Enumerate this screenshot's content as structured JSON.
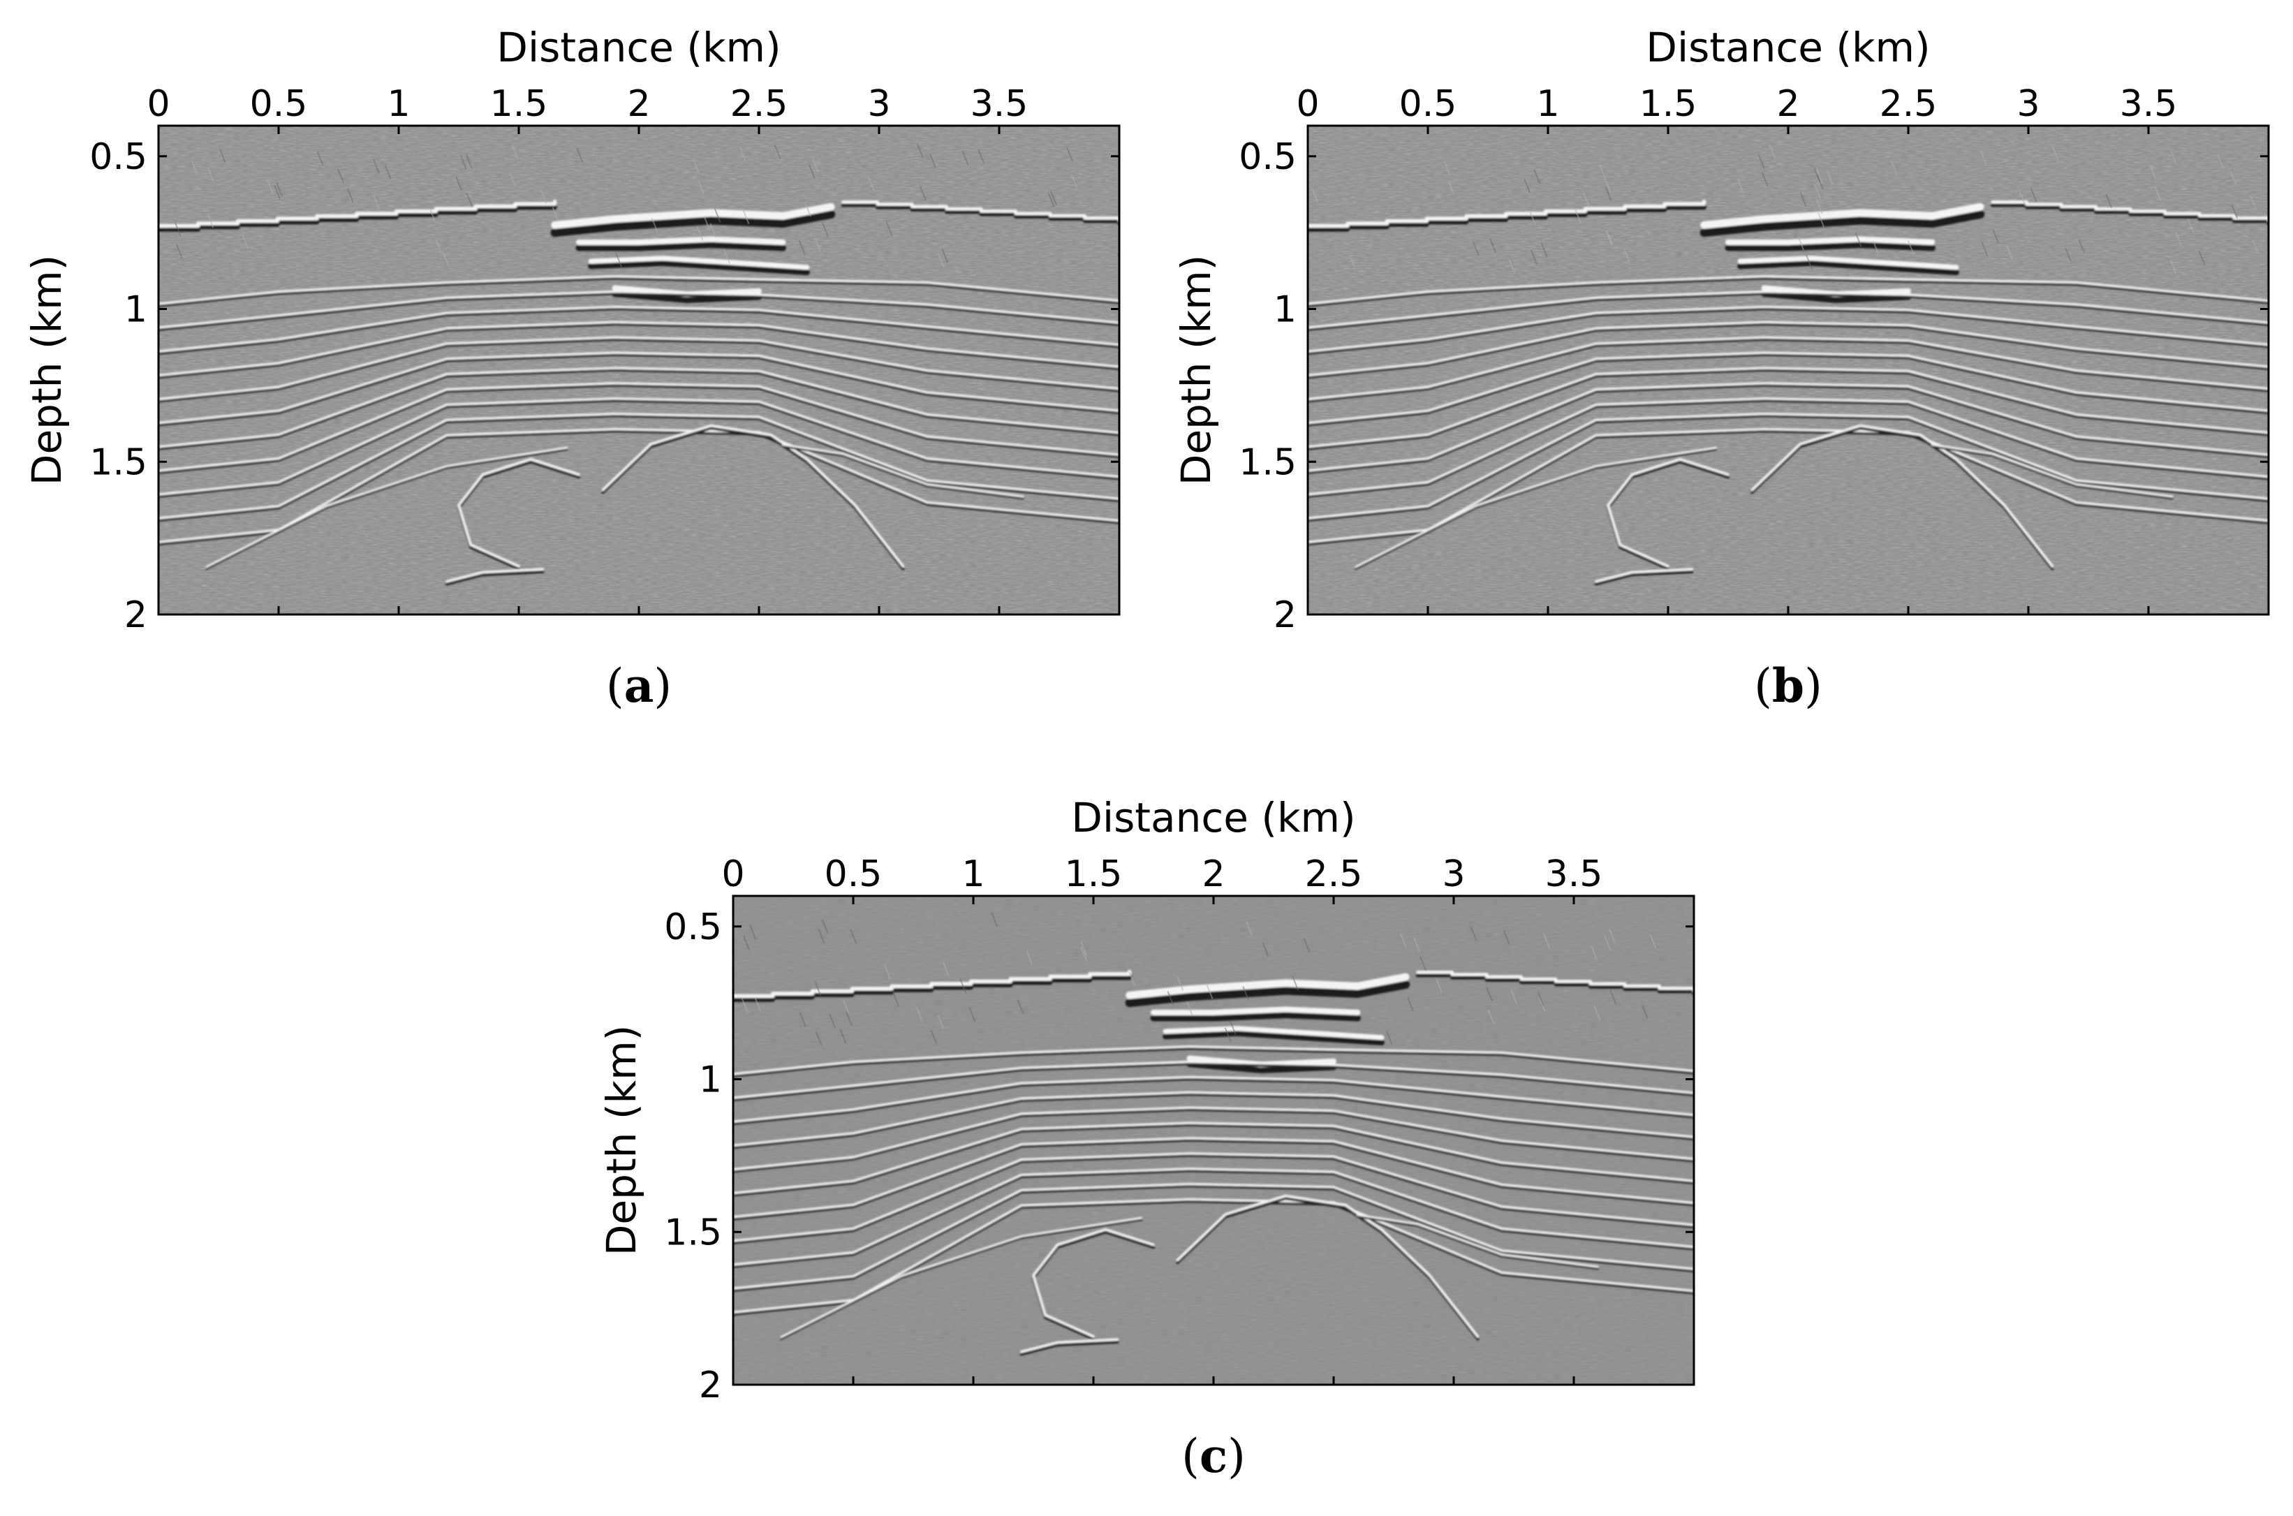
{
  "chart_data": [
    {
      "type": "heatmap",
      "panel_label": "a",
      "xlabel": "Distance (km)",
      "ylabel": "Depth (km)",
      "xlim": [
        0,
        4
      ],
      "ylim": [
        0.4,
        2
      ],
      "x_ticks": [
        0,
        0.5,
        1,
        1.5,
        2,
        2.5,
        3,
        3.5
      ],
      "x_tick_labels": [
        "0",
        "0.5",
        "1",
        "1.5",
        "2",
        "2.5",
        "3",
        "3.5"
      ],
      "y_ticks": [
        0.5,
        1,
        1.5,
        2
      ],
      "y_tick_labels": [
        "0.5",
        "1",
        "1.5",
        "2"
      ],
      "colormap": "gray",
      "noise": "high",
      "grid": false
    },
    {
      "type": "heatmap",
      "panel_label": "b",
      "xlabel": "Distance (km)",
      "ylabel": "Depth (km)",
      "xlim": [
        0,
        4
      ],
      "ylim": [
        0.4,
        2
      ],
      "x_ticks": [
        0,
        0.5,
        1,
        1.5,
        2,
        2.5,
        3,
        3.5
      ],
      "x_tick_labels": [
        "0",
        "0.5",
        "1",
        "1.5",
        "2",
        "2.5",
        "3",
        "3.5"
      ],
      "y_ticks": [
        0.5,
        1,
        1.5,
        2
      ],
      "y_tick_labels": [
        "0.5",
        "1",
        "1.5",
        "2"
      ],
      "colormap": "gray",
      "noise": "high",
      "grid": false
    },
    {
      "type": "heatmap",
      "panel_label": "c",
      "xlabel": "Distance (km)",
      "ylabel": "Depth (km)",
      "xlim": [
        0,
        4
      ],
      "ylim": [
        0.4,
        2
      ],
      "x_ticks": [
        0,
        0.5,
        1,
        1.5,
        2,
        2.5,
        3,
        3.5
      ],
      "x_tick_labels": [
        "0",
        "0.5",
        "1",
        "1.5",
        "2",
        "2.5",
        "3",
        "3.5"
      ],
      "y_ticks": [
        0.5,
        1,
        1.5,
        2
      ],
      "y_tick_labels": [
        "0.5",
        "1",
        "1.5",
        "2"
      ],
      "colormap": "gray",
      "noise": "low",
      "grid": false
    }
  ]
}
